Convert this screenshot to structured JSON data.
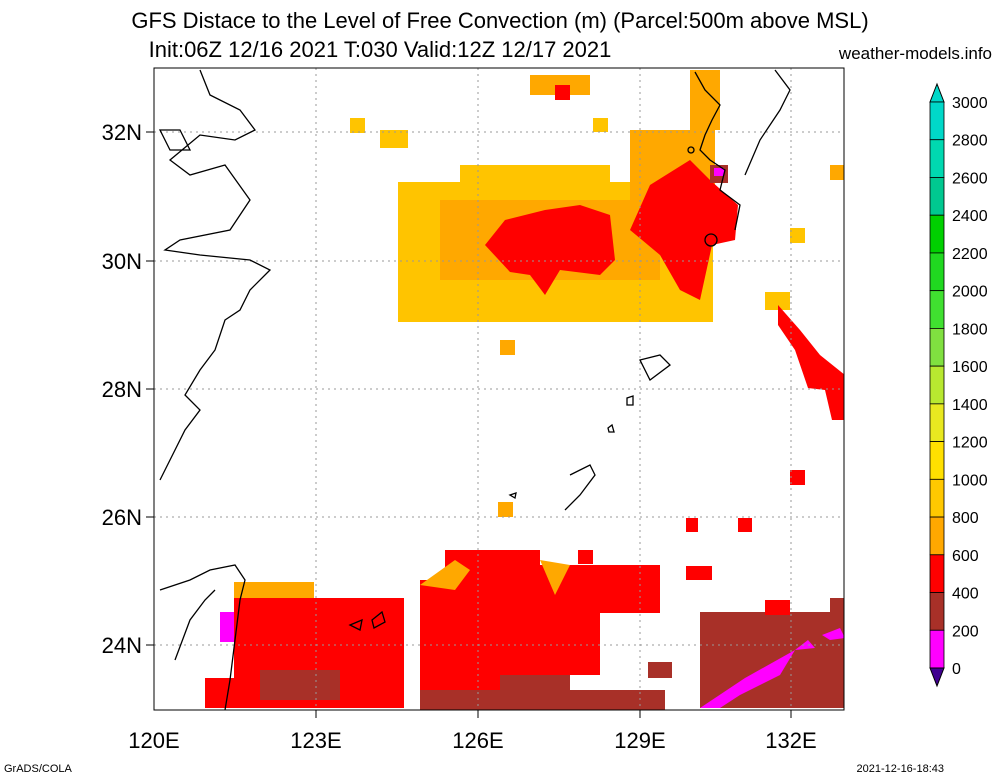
{
  "title_line1": "GFS Distace to the Level of Free Convection (m) (Parcel:500m above MSL)",
  "title_line2": "Init:06Z 12/16 2021 T:030 Valid:12Z 12/17 2021",
  "source": "weather-models.info",
  "footer_left": "GrADS/COLA",
  "footer_right": "2021-12-16-18:43",
  "lat_labels": [
    "32N",
    "30N",
    "28N",
    "26N",
    "24N"
  ],
  "lon_labels": [
    "120E",
    "123E",
    "126E",
    "129E",
    "132E"
  ],
  "colorbar": {
    "labels": [
      "3000",
      "2800",
      "2600",
      "2400",
      "2200",
      "2000",
      "1800",
      "1600",
      "1400",
      "1200",
      "1000",
      "800",
      "600",
      "400",
      "200",
      "0"
    ],
    "colors": [
      "#00d8c8",
      "#00d8b0",
      "#00c890",
      "#00d000",
      "#20d820",
      "#40e030",
      "#80e040",
      "#b8e830",
      "#e8e820",
      "#ffe000",
      "#ffc800",
      "#ffa800",
      "#ff0000",
      "#a83028",
      "#ff00ff",
      "#400090"
    ]
  },
  "field_colors": {
    "c600_800": "#ffa800",
    "c800_1000": "#ffc400",
    "c400_600": "#ff0000",
    "c200_400": "#a83028",
    "c0_200": "#ff00ff"
  }
}
